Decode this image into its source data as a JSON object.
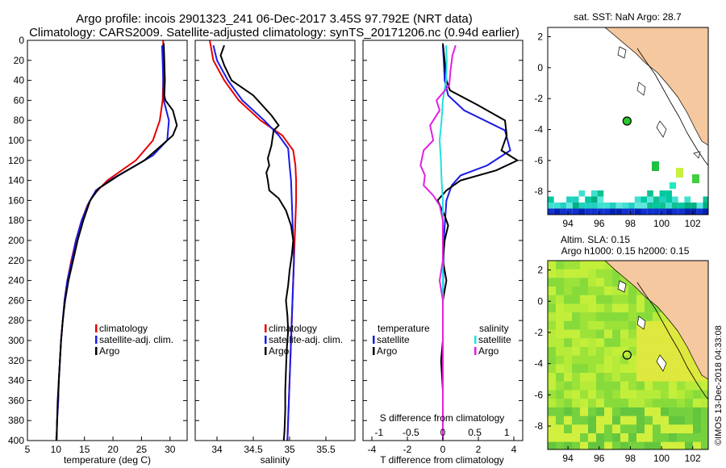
{
  "figure": {
    "title_line1": "Argo profile: incois 2901323_241 06-Dec-2017 3.45S 97.792E (NRT data)",
    "title_line2": "Climatology: CARS2009. Satellite-adjusted climatology: synTS_20171206.nc (0.94d earlier)",
    "sidebar_text": "©IMOS 13-Dec-2018 04:33:08",
    "colors": {
      "climatology": "#e60000",
      "satellite": "#1a1ae6",
      "argo": "#000000",
      "satellite_s": "#20e0e0",
      "argo_s": "#e020e0",
      "land": "#f5c8a0",
      "ocean_bg": "#ffffff"
    }
  },
  "chart_data": [
    {
      "id": "temperature",
      "type": "line",
      "xlabel": "temperature (deg C)",
      "xlim": [
        5,
        33
      ],
      "xticks": [
        5,
        10,
        15,
        20,
        25,
        30
      ],
      "ylim": [
        0,
        400
      ],
      "yticks": [
        0,
        20,
        40,
        60,
        80,
        100,
        120,
        140,
        160,
        180,
        200,
        220,
        240,
        260,
        280,
        300,
        320,
        340,
        360,
        380,
        400
      ],
      "legend": [
        "climatology",
        "satellite-adj. clim.",
        "Argo"
      ],
      "series": [
        {
          "name": "climatology",
          "color": "#e60000",
          "points": [
            [
              28.8,
              0
            ],
            [
              28.8,
              20
            ],
            [
              28.8,
              40
            ],
            [
              28.7,
              60
            ],
            [
              28.2,
              80
            ],
            [
              27,
              100
            ],
            [
              24,
              120
            ],
            [
              19,
              140
            ],
            [
              16.5,
              155
            ],
            [
              15.5,
              165
            ],
            [
              14.5,
              180
            ],
            [
              13.5,
              200
            ],
            [
              12.7,
              220
            ],
            [
              12,
              240
            ],
            [
              11.5,
              260
            ],
            [
              11.2,
              280
            ],
            [
              10.9,
              300
            ],
            [
              10.7,
              320
            ],
            [
              10.5,
              340
            ],
            [
              10.4,
              360
            ],
            [
              10.2,
              380
            ],
            [
              10.1,
              400
            ]
          ]
        },
        {
          "name": "satellite-adj. clim.",
          "color": "#1a1ae6",
          "points": [
            [
              28.6,
              5
            ],
            [
              28.7,
              20
            ],
            [
              28.8,
              40
            ],
            [
              28.9,
              60
            ],
            [
              29.8,
              80
            ],
            [
              29.5,
              100
            ],
            [
              27,
              115
            ],
            [
              24,
              125
            ],
            [
              20,
              138
            ],
            [
              17,
              150
            ],
            [
              15.8,
              162
            ],
            [
              14.5,
              180
            ],
            [
              13.5,
              200
            ],
            [
              12.8,
              220
            ],
            [
              12,
              240
            ],
            [
              11.5,
              260
            ],
            [
              11.2,
              280
            ],
            [
              10.9,
              300
            ],
            [
              10.7,
              320
            ],
            [
              10.5,
              340
            ],
            [
              10.4,
              360
            ],
            [
              10.2,
              380
            ],
            [
              10.1,
              400
            ]
          ]
        },
        {
          "name": "Argo",
          "color": "#000000",
          "points": [
            [
              28.9,
              3
            ],
            [
              29,
              20
            ],
            [
              29.1,
              40
            ],
            [
              29,
              55
            ],
            [
              29.2,
              60
            ],
            [
              30.5,
              70
            ],
            [
              31.2,
              85
            ],
            [
              30.5,
              95
            ],
            [
              28.5,
              105
            ],
            [
              25.5,
              120
            ],
            [
              21,
              135
            ],
            [
              17.5,
              148
            ],
            [
              16,
              160
            ],
            [
              14.8,
              180
            ],
            [
              13.8,
              200
            ],
            [
              13,
              220
            ],
            [
              12.2,
              240
            ],
            [
              11.6,
              260
            ],
            [
              11.2,
              280
            ],
            [
              10.9,
              300
            ],
            [
              10.7,
              320
            ],
            [
              10.5,
              340
            ],
            [
              10.3,
              360
            ],
            [
              10.2,
              380
            ],
            [
              10.1,
              400
            ]
          ]
        }
      ]
    },
    {
      "id": "salinity",
      "type": "line",
      "xlabel": "salinity",
      "xlim": [
        33.7,
        35.9
      ],
      "xticks": [
        34,
        34.5,
        35,
        35.5
      ],
      "xtick_labels": [
        "34",
        "34.5",
        "35",
        "35.5"
      ],
      "ylim": [
        0,
        400
      ],
      "legend": [
        "climatology",
        "satellite-adj. clim.",
        "Argo"
      ],
      "series": [
        {
          "name": "climatology",
          "color": "#e60000",
          "points": [
            [
              33.9,
              0
            ],
            [
              33.95,
              20
            ],
            [
              34.1,
              40
            ],
            [
              34.3,
              60
            ],
            [
              34.6,
              80
            ],
            [
              34.9,
              95
            ],
            [
              35.05,
              110
            ],
            [
              35.08,
              125
            ],
            [
              35.09,
              140
            ],
            [
              35.09,
              160
            ],
            [
              35.08,
              180
            ],
            [
              35.07,
              200
            ],
            [
              35.06,
              220
            ],
            [
              35.05,
              240
            ],
            [
              35.04,
              260
            ],
            [
              35.03,
              280
            ],
            [
              35.02,
              300
            ],
            [
              35.01,
              320
            ],
            [
              35.0,
              340
            ],
            [
              34.99,
              360
            ],
            [
              34.98,
              380
            ],
            [
              34.97,
              400
            ]
          ]
        },
        {
          "name": "satellite-adj. clim.",
          "color": "#1a1ae6",
          "points": [
            [
              33.95,
              5
            ],
            [
              34.0,
              20
            ],
            [
              34.15,
              40
            ],
            [
              34.35,
              60
            ],
            [
              34.65,
              80
            ],
            [
              34.85,
              95
            ],
            [
              34.98,
              108
            ],
            [
              35.0,
              125
            ],
            [
              35.02,
              140
            ],
            [
              35.03,
              160
            ],
            [
              35.04,
              180
            ],
            [
              35.05,
              200
            ],
            [
              35.06,
              220
            ],
            [
              35.05,
              240
            ],
            [
              35.04,
              260
            ],
            [
              35.03,
              280
            ],
            [
              35.02,
              300
            ],
            [
              35.01,
              320
            ],
            [
              35.0,
              340
            ],
            [
              34.99,
              360
            ],
            [
              34.98,
              380
            ],
            [
              34.97,
              400
            ]
          ]
        },
        {
          "name": "Argo",
          "color": "#000000",
          "points": [
            [
              34.1,
              5
            ],
            [
              34.05,
              15
            ],
            [
              34.1,
              25
            ],
            [
              34.2,
              40
            ],
            [
              34.5,
              55
            ],
            [
              34.75,
              75
            ],
            [
              34.85,
              85
            ],
            [
              34.78,
              90
            ],
            [
              34.75,
              105
            ],
            [
              34.7,
              118
            ],
            [
              34.72,
              125
            ],
            [
              34.68,
              132
            ],
            [
              34.7,
              140
            ],
            [
              34.72,
              150
            ],
            [
              34.85,
              158
            ],
            [
              34.95,
              170
            ],
            [
              35.02,
              185
            ],
            [
              35.05,
              200
            ],
            [
              35.03,
              215
            ],
            [
              35.0,
              230
            ],
            [
              34.98,
              245
            ],
            [
              34.95,
              260
            ],
            [
              34.97,
              275
            ],
            [
              34.98,
              290
            ],
            [
              34.96,
              310
            ],
            [
              34.95,
              330
            ],
            [
              34.94,
              350
            ],
            [
              34.94,
              370
            ],
            [
              34.93,
              390
            ],
            [
              34.92,
              400
            ]
          ]
        }
      ]
    },
    {
      "id": "differences",
      "type": "line",
      "xlabel": "T difference from climatology",
      "xlim": [
        -4.5,
        4.5
      ],
      "xticks": [
        -4,
        -2,
        0,
        2,
        4
      ],
      "top_axis_label": "S difference from climatology",
      "top_xticks": [
        -1,
        -0.5,
        0,
        0.5,
        1
      ],
      "top_xtick_labels": [
        "-1",
        "-0.5",
        "0",
        "0.5",
        "1"
      ],
      "ylim": [
        0,
        400
      ],
      "legend_left_title": "temperature",
      "legend_left": [
        "satellite",
        "Argo"
      ],
      "legend_right_title": "salinity",
      "legend_right": [
        "satellite",
        "Argo"
      ],
      "series": [
        {
          "name": "T satellite",
          "color": "#1a1ae6",
          "points": [
            [
              0,
              5
            ],
            [
              0.05,
              20
            ],
            [
              0.1,
              40
            ],
            [
              0.3,
              55
            ],
            [
              1.2,
              70
            ],
            [
              3.5,
              90
            ],
            [
              3.8,
              110
            ],
            [
              2.5,
              125
            ],
            [
              1.0,
              135
            ],
            [
              0.5,
              145
            ],
            [
              0.2,
              160
            ],
            [
              0.05,
              200
            ],
            [
              0,
              260
            ],
            [
              0,
              300
            ],
            [
              0,
              350
            ],
            [
              0,
              400
            ]
          ]
        },
        {
          "name": "T Argo",
          "color": "#000000",
          "points": [
            [
              0,
              3
            ],
            [
              0.1,
              20
            ],
            [
              0.2,
              40
            ],
            [
              0.4,
              50
            ],
            [
              2,
              65
            ],
            [
              3.5,
              80
            ],
            [
              3.6,
              95
            ],
            [
              3.3,
              110
            ],
            [
              4.2,
              120
            ],
            [
              3.0,
              130
            ],
            [
              1.0,
              140
            ],
            [
              0.2,
              150
            ],
            [
              -0.3,
              160
            ],
            [
              0.1,
              175
            ],
            [
              0.3,
              185
            ],
            [
              0.1,
              200
            ],
            [
              0,
              220
            ],
            [
              0.2,
              240
            ],
            [
              0,
              260
            ],
            [
              0,
              300
            ],
            [
              -0.1,
              320
            ],
            [
              0,
              350
            ],
            [
              0,
              400
            ]
          ]
        },
        {
          "name": "S satellite",
          "color": "#20e0e0",
          "points": [
            [
              0.05,
              5
            ],
            [
              0.06,
              20
            ],
            [
              0.05,
              40
            ],
            [
              0.0,
              60
            ],
            [
              -0.02,
              80
            ],
            [
              -0.05,
              100
            ],
            [
              -0.03,
              120
            ],
            [
              -0.02,
              140
            ],
            [
              0,
              160
            ],
            [
              0,
              200
            ],
            [
              0,
              260
            ],
            [
              0,
              300
            ],
            [
              0,
              350
            ],
            [
              0,
              400
            ]
          ]
        },
        {
          "name": "S Argo",
          "color": "#e020e0",
          "points": [
            [
              0.2,
              5
            ],
            [
              0.15,
              15
            ],
            [
              0.12,
              30
            ],
            [
              0.1,
              45
            ],
            [
              -0.1,
              60
            ],
            [
              -0.05,
              70
            ],
            [
              -0.2,
              85
            ],
            [
              -0.15,
              100
            ],
            [
              -0.3,
              110
            ],
            [
              -0.35,
              125
            ],
            [
              -0.28,
              135
            ],
            [
              -0.3,
              145
            ],
            [
              -0.15,
              155
            ],
            [
              -0.05,
              165
            ],
            [
              0,
              180
            ],
            [
              0,
              220
            ],
            [
              -0.05,
              240
            ],
            [
              0,
              260
            ],
            [
              0,
              300
            ],
            [
              0,
              350
            ],
            [
              0,
              400
            ]
          ]
        }
      ]
    }
  ],
  "maps": {
    "top": {
      "title": "sat. SST: NaN Argo: 28.7",
      "xticks": [
        94,
        96,
        98,
        100,
        102
      ],
      "yticks": [
        2,
        0,
        -2,
        -4,
        -6,
        -8
      ],
      "xlim": [
        92.7,
        103
      ],
      "ylim": [
        -9.5,
        2.6
      ],
      "float_lon": 97.79,
      "float_lat": -3.45
    },
    "bottom": {
      "title1": "Altim. SLA: 0.15",
      "title2": "Argo h1000: 0.15 h2000: 0.15",
      "xticks": [
        94,
        96,
        98,
        100,
        102
      ],
      "yticks": [
        2,
        0,
        -2,
        -4,
        -6,
        -8
      ],
      "xlim": [
        92.7,
        103
      ],
      "ylim": [
        -9.5,
        2.6
      ],
      "float_lon": 97.79,
      "float_lat": -3.45
    }
  }
}
